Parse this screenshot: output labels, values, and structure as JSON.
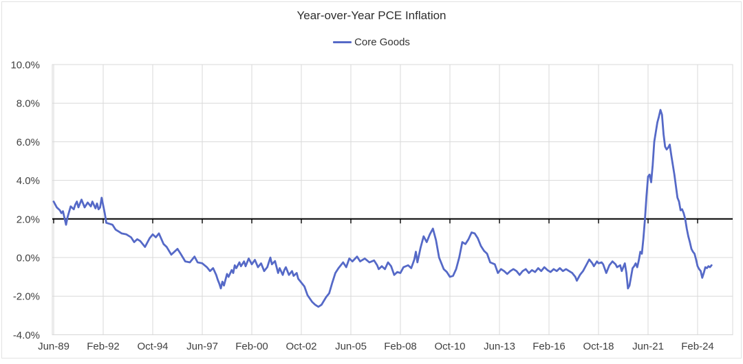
{
  "title": "Year-over-Year PCE Inflation",
  "legend": {
    "label": "Core Goods"
  },
  "colors": {
    "series": "#5569C7",
    "axis_line": "#000000",
    "grid": "#D9D9D9",
    "tick_text": "#404040",
    "title_text": "#2e2e2e"
  },
  "chart_data": {
    "type": "line",
    "title": "Year-over-Year PCE Inflation",
    "series_name": "Core Goods",
    "legend_position": "top",
    "grid": "on",
    "x_unit": "months since Jun-1989, monthly series Jun-1989 to Nov-2024",
    "x_tick_labels": [
      "Jun-89",
      "Feb-92",
      "Oct-94",
      "Jun-97",
      "Feb-00",
      "Oct-02",
      "Jun-05",
      "Feb-08",
      "Oct-10",
      "Jun-13",
      "Feb-16",
      "Oct-18",
      "Jun-21",
      "Feb-24"
    ],
    "x_tick_month_index": [
      0,
      32,
      64,
      96,
      128,
      160,
      192,
      224,
      256,
      288,
      320,
      352,
      384,
      416
    ],
    "y_ticks": [
      -4,
      -2,
      0,
      2,
      4,
      6,
      8,
      10
    ],
    "y_tick_labels": [
      "-4.0%",
      "-2.0%",
      "0.0%",
      "2.0%",
      "4.0%",
      "6.0%",
      "8.0%",
      "10.0%"
    ],
    "ylim": [
      -4,
      10
    ],
    "xlabel": "",
    "ylabel": "",
    "axis_cross_value": 2.0,
    "points": [
      [
        0,
        2.9
      ],
      [
        2,
        2.6
      ],
      [
        4,
        2.45
      ],
      [
        5,
        2.3
      ],
      [
        6,
        2.4
      ],
      [
        8,
        1.7
      ],
      [
        9,
        2.1
      ],
      [
        11,
        2.65
      ],
      [
        13,
        2.5
      ],
      [
        14,
        2.75
      ],
      [
        15,
        2.9
      ],
      [
        16,
        2.6
      ],
      [
        18,
        3.0
      ],
      [
        20,
        2.6
      ],
      [
        22,
        2.85
      ],
      [
        24,
        2.65
      ],
      [
        25,
        2.9
      ],
      [
        27,
        2.55
      ],
      [
        28,
        2.8
      ],
      [
        29,
        2.5
      ],
      [
        30,
        2.6
      ],
      [
        31,
        3.1
      ],
      [
        33,
        2.3
      ],
      [
        34,
        1.8
      ],
      [
        36,
        1.75
      ],
      [
        38,
        1.7
      ],
      [
        40,
        1.45
      ],
      [
        42,
        1.35
      ],
      [
        44,
        1.25
      ],
      [
        47,
        1.2
      ],
      [
        50,
        1.05
      ],
      [
        52,
        0.8
      ],
      [
        54,
        0.95
      ],
      [
        56,
        0.85
      ],
      [
        59,
        0.55
      ],
      [
        62,
        1.0
      ],
      [
        64,
        1.2
      ],
      [
        66,
        1.05
      ],
      [
        68,
        1.25
      ],
      [
        71,
        0.7
      ],
      [
        73,
        0.55
      ],
      [
        76,
        0.15
      ],
      [
        78,
        0.3
      ],
      [
        80,
        0.45
      ],
      [
        82,
        0.2
      ],
      [
        85,
        -0.2
      ],
      [
        88,
        -0.25
      ],
      [
        91,
        0.05
      ],
      [
        93,
        -0.25
      ],
      [
        96,
        -0.3
      ],
      [
        99,
        -0.5
      ],
      [
        101,
        -0.7
      ],
      [
        103,
        -0.55
      ],
      [
        105,
        -0.9
      ],
      [
        106,
        -1.15
      ],
      [
        107,
        -1.35
      ],
      [
        108,
        -1.6
      ],
      [
        109,
        -1.25
      ],
      [
        110,
        -1.45
      ],
      [
        112,
        -0.85
      ],
      [
        113,
        -1.0
      ],
      [
        115,
        -0.65
      ],
      [
        116,
        -0.8
      ],
      [
        117,
        -0.4
      ],
      [
        118,
        -0.55
      ],
      [
        120,
        -0.25
      ],
      [
        121,
        -0.45
      ],
      [
        123,
        -0.2
      ],
      [
        124,
        -0.45
      ],
      [
        126,
        -0.05
      ],
      [
        128,
        -0.35
      ],
      [
        130,
        -0.12
      ],
      [
        132,
        -0.5
      ],
      [
        134,
        -0.3
      ],
      [
        136,
        -0.7
      ],
      [
        138,
        -0.5
      ],
      [
        140,
        0.0
      ],
      [
        141,
        -0.35
      ],
      [
        143,
        -0.18
      ],
      [
        145,
        -0.8
      ],
      [
        146,
        -0.55
      ],
      [
        148,
        -0.9
      ],
      [
        149,
        -0.65
      ],
      [
        150,
        -0.5
      ],
      [
        152,
        -0.9
      ],
      [
        154,
        -0.7
      ],
      [
        155,
        -0.95
      ],
      [
        157,
        -0.8
      ],
      [
        158,
        -1.1
      ],
      [
        160,
        -1.3
      ],
      [
        162,
        -1.5
      ],
      [
        164,
        -1.95
      ],
      [
        167,
        -2.3
      ],
      [
        169,
        -2.45
      ],
      [
        171,
        -2.55
      ],
      [
        173,
        -2.45
      ],
      [
        176,
        -2.05
      ],
      [
        178,
        -1.85
      ],
      [
        180,
        -1.3
      ],
      [
        182,
        -0.8
      ],
      [
        184,
        -0.55
      ],
      [
        187,
        -0.25
      ],
      [
        189,
        -0.5
      ],
      [
        191,
        -0.05
      ],
      [
        193,
        -0.2
      ],
      [
        196,
        0.05
      ],
      [
        198,
        -0.2
      ],
      [
        201,
        -0.05
      ],
      [
        204,
        -0.25
      ],
      [
        207,
        -0.15
      ],
      [
        209,
        -0.4
      ],
      [
        210,
        -0.6
      ],
      [
        212,
        -0.45
      ],
      [
        214,
        -0.6
      ],
      [
        216,
        -0.25
      ],
      [
        218,
        -0.45
      ],
      [
        220,
        -0.9
      ],
      [
        222,
        -0.75
      ],
      [
        224,
        -0.8
      ],
      [
        226,
        -0.5
      ],
      [
        229,
        -0.4
      ],
      [
        231,
        -0.55
      ],
      [
        233,
        -0.1
      ],
      [
        234,
        0.3
      ],
      [
        235,
        -0.25
      ],
      [
        237,
        0.5
      ],
      [
        239,
        1.1
      ],
      [
        241,
        0.8
      ],
      [
        243,
        1.2
      ],
      [
        245,
        1.5
      ],
      [
        247,
        0.9
      ],
      [
        249,
        0.0
      ],
      [
        250,
        -0.2
      ],
      [
        252,
        -0.6
      ],
      [
        254,
        -0.75
      ],
      [
        256,
        -1.0
      ],
      [
        258,
        -0.95
      ],
      [
        260,
        -0.6
      ],
      [
        262,
        0.0
      ],
      [
        264,
        0.8
      ],
      [
        266,
        0.7
      ],
      [
        268,
        0.95
      ],
      [
        270,
        1.3
      ],
      [
        272,
        1.25
      ],
      [
        274,
        1.0
      ],
      [
        276,
        0.6
      ],
      [
        278,
        0.35
      ],
      [
        280,
        0.2
      ],
      [
        282,
        -0.25
      ],
      [
        285,
        -0.35
      ],
      [
        287,
        -0.8
      ],
      [
        289,
        -0.6
      ],
      [
        291,
        -0.7
      ],
      [
        293,
        -0.85
      ],
      [
        295,
        -0.7
      ],
      [
        297,
        -0.6
      ],
      [
        299,
        -0.7
      ],
      [
        301,
        -0.9
      ],
      [
        303,
        -0.7
      ],
      [
        305,
        -0.6
      ],
      [
        307,
        -0.8
      ],
      [
        309,
        -0.65
      ],
      [
        311,
        -0.75
      ],
      [
        313,
        -0.55
      ],
      [
        315,
        -0.7
      ],
      [
        317,
        -0.5
      ],
      [
        319,
        -0.65
      ],
      [
        321,
        -0.75
      ],
      [
        323,
        -0.6
      ],
      [
        325,
        -0.7
      ],
      [
        327,
        -0.55
      ],
      [
        329,
        -0.7
      ],
      [
        331,
        -0.6
      ],
      [
        333,
        -0.7
      ],
      [
        335,
        -0.8
      ],
      [
        337,
        -1.0
      ],
      [
        338,
        -1.2
      ],
      [
        340,
        -0.9
      ],
      [
        342,
        -0.7
      ],
      [
        344,
        -0.4
      ],
      [
        346,
        -0.1
      ],
      [
        348,
        -0.3
      ],
      [
        349,
        -0.45
      ],
      [
        351,
        -0.2
      ],
      [
        352,
        -0.3
      ],
      [
        354,
        -0.25
      ],
      [
        355,
        -0.35
      ],
      [
        357,
        -0.8
      ],
      [
        359,
        -0.4
      ],
      [
        361,
        -0.2
      ],
      [
        363,
        -0.35
      ],
      [
        364,
        -0.5
      ],
      [
        366,
        -0.4
      ],
      [
        367,
        -0.7
      ],
      [
        369,
        -0.3
      ],
      [
        370,
        -0.8
      ],
      [
        371,
        -1.6
      ],
      [
        372,
        -1.45
      ],
      [
        374,
        -0.55
      ],
      [
        375,
        -0.45
      ],
      [
        376,
        -0.3
      ],
      [
        377,
        -0.5
      ],
      [
        378,
        -0.15
      ],
      [
        379,
        0.3
      ],
      [
        380,
        0.2
      ],
      [
        381,
        1.0
      ],
      [
        382,
        2.0
      ],
      [
        383,
        3.2
      ],
      [
        384,
        4.2
      ],
      [
        385,
        4.3
      ],
      [
        386,
        3.9
      ],
      [
        387,
        4.8
      ],
      [
        388,
        6.0
      ],
      [
        389,
        6.5
      ],
      [
        390,
        7.0
      ],
      [
        391,
        7.3
      ],
      [
        392,
        7.65
      ],
      [
        393,
        7.4
      ],
      [
        394,
        6.4
      ],
      [
        395,
        5.75
      ],
      [
        396,
        5.6
      ],
      [
        397,
        5.7
      ],
      [
        398,
        5.85
      ],
      [
        399,
        5.3
      ],
      [
        400,
        4.8
      ],
      [
        401,
        4.3
      ],
      [
        402,
        3.7
      ],
      [
        403,
        3.1
      ],
      [
        404,
        2.9
      ],
      [
        405,
        2.45
      ],
      [
        406,
        2.5
      ],
      [
        407,
        2.3
      ],
      [
        408,
        2.0
      ],
      [
        409,
        1.5
      ],
      [
        410,
        1.1
      ],
      [
        411,
        0.8
      ],
      [
        412,
        0.45
      ],
      [
        413,
        0.3
      ],
      [
        414,
        0.2
      ],
      [
        415,
        -0.1
      ],
      [
        416,
        -0.45
      ],
      [
        417,
        -0.6
      ],
      [
        418,
        -0.7
      ],
      [
        419,
        -1.05
      ],
      [
        420,
        -0.8
      ],
      [
        421,
        -0.5
      ],
      [
        422,
        -0.55
      ],
      [
        423,
        -0.45
      ],
      [
        424,
        -0.5
      ],
      [
        425,
        -0.4
      ]
    ]
  },
  "plot_geometry_note": "y axis crosses x at 2.0% (black line with down ticks); labels drawn low at chart bottom"
}
